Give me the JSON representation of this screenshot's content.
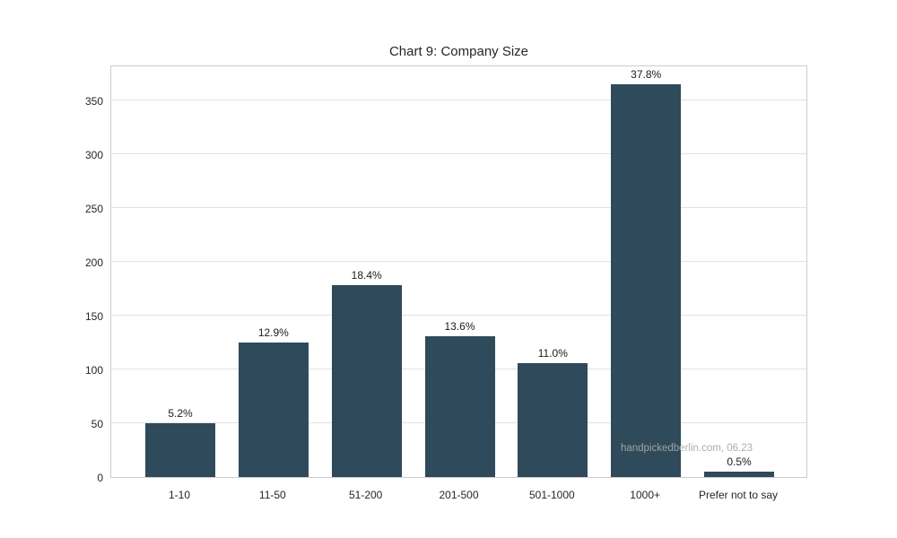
{
  "chart_data": {
    "type": "bar",
    "title": "Chart 9: Company Size",
    "categories": [
      "1-10",
      "11-50",
      "51-200",
      "201-500",
      "501-1000",
      "1000+",
      "Prefer not to say"
    ],
    "values": [
      50,
      125,
      178,
      131,
      106,
      365,
      5
    ],
    "bar_labels": [
      "5.2%",
      "12.9%",
      "18.4%",
      "13.6%",
      "11.0%",
      "37.8%",
      "0.5%"
    ],
    "xlabel": "",
    "ylabel": "",
    "ylim": [
      0,
      383
    ],
    "yticks": [
      0,
      50,
      100,
      150,
      200,
      250,
      300,
      350
    ],
    "grid": "horizontal",
    "legend": "none",
    "bar_color": "#2f4a5a",
    "grid_color": "#e2e2e2",
    "frame_color": "#cccccc",
    "text_color": "#262626",
    "watermark": "handpickedberlin.com, 06.23"
  }
}
